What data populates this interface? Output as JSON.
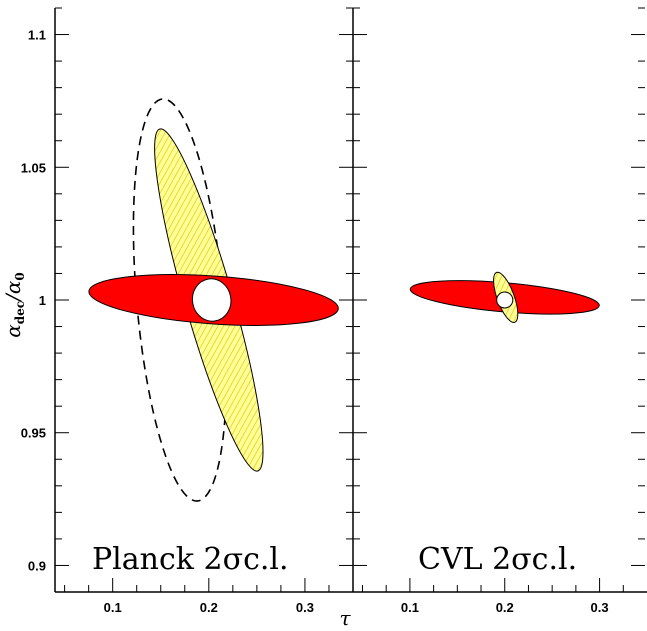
{
  "chart_data": {
    "type": "contour",
    "xlabel": "τ",
    "ylabel": {
      "main": "α",
      "sub_num": "dec",
      "slash": "/α",
      "sub_den": "0"
    },
    "xlim": [
      0.04,
      0.35
    ],
    "ylim": [
      0.89,
      1.11
    ],
    "xticks": [
      0.1,
      0.2,
      0.3
    ],
    "xtick_labels": [
      "0.1",
      "0.2",
      "0.3"
    ],
    "yticks": [
      0.9,
      0.95,
      1.0,
      1.05,
      1.1
    ],
    "ytick_labels": [
      "0.9",
      "0.95",
      "1",
      "1.05",
      "1.1"
    ],
    "colors": {
      "red": "#ff0000",
      "yellow": "#ffff99",
      "hatch": "#e6c800",
      "outline": "#000000"
    },
    "panels": [
      {
        "label": "Planck  2σc.l.",
        "contours": [
          {
            "fill": "none",
            "style": "dashed",
            "cx": 0.17,
            "cy": 1.0,
            "rx": 0.045,
            "ry": 0.076,
            "angle": -5
          },
          {
            "fill": "yellow-hatched",
            "cx": 0.2,
            "cy": 1.0,
            "rx": 0.025,
            "ry": 0.067,
            "angle": -16
          },
          {
            "fill": "red",
            "cx": 0.205,
            "cy": 1.0,
            "rx": 0.13,
            "ry": 0.009,
            "angle": 4
          },
          {
            "fill": "white",
            "cx": 0.203,
            "cy": 1.0,
            "rx": 0.02,
            "ry": 0.008,
            "angle": -10
          }
        ]
      },
      {
        "label": "CVL    2σc.l.",
        "contours": [
          {
            "fill": "red",
            "cx": 0.2,
            "cy": 1.001,
            "rx": 0.1,
            "ry": 0.0055,
            "angle": 5
          },
          {
            "fill": "yellow-hatched",
            "cx": 0.201,
            "cy": 1.001,
            "rx": 0.009,
            "ry": 0.01,
            "angle": -20
          },
          {
            "fill": "white",
            "cx": 0.2,
            "cy": 1.0,
            "rx": 0.0085,
            "ry": 0.003,
            "angle": 0
          }
        ]
      }
    ]
  }
}
